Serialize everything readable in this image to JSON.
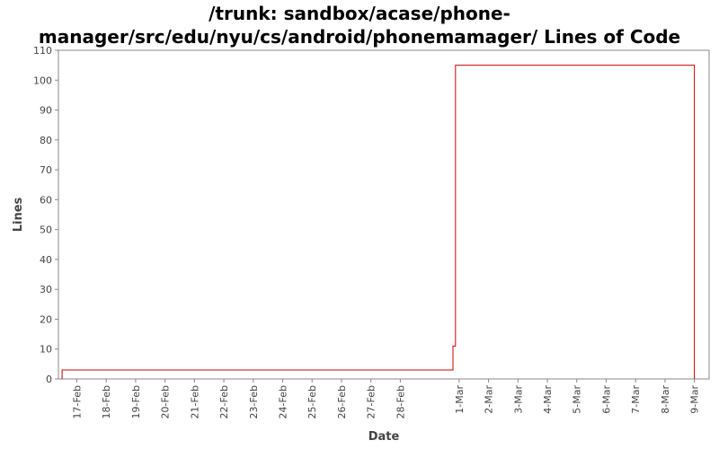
{
  "chart_data": {
    "type": "line",
    "title_lines": [
      "/trunk: sandbox/acase/phone-",
      "manager/src/edu/nyu/cs/android/phonemamager/ Lines of Code"
    ],
    "xlabel": "Date",
    "ylabel": "Lines",
    "ylim": [
      0,
      110
    ],
    "yticks": [
      0,
      10,
      20,
      30,
      40,
      50,
      60,
      70,
      80,
      90,
      100,
      110
    ],
    "x_start": "2008-02-16T09:00",
    "x_end": "2008-03-09T12:00",
    "xticks": [
      {
        "date": "2008-02-17",
        "label": "17-Feb"
      },
      {
        "date": "2008-02-18",
        "label": "18-Feb"
      },
      {
        "date": "2008-02-19",
        "label": "19-Feb"
      },
      {
        "date": "2008-02-20",
        "label": "20-Feb"
      },
      {
        "date": "2008-02-21",
        "label": "21-Feb"
      },
      {
        "date": "2008-02-22",
        "label": "22-Feb"
      },
      {
        "date": "2008-02-23",
        "label": "23-Feb"
      },
      {
        "date": "2008-02-24",
        "label": "24-Feb"
      },
      {
        "date": "2008-02-25",
        "label": "25-Feb"
      },
      {
        "date": "2008-02-26",
        "label": "26-Feb"
      },
      {
        "date": "2008-02-27",
        "label": "27-Feb"
      },
      {
        "date": "2008-02-28",
        "label": "28-Feb"
      },
      {
        "date": "2008-03-01",
        "label": "1-Mar"
      },
      {
        "date": "2008-03-02",
        "label": "2-Mar"
      },
      {
        "date": "2008-03-03",
        "label": "3-Mar"
      },
      {
        "date": "2008-03-04",
        "label": "4-Mar"
      },
      {
        "date": "2008-03-05",
        "label": "5-Mar"
      },
      {
        "date": "2008-03-06",
        "label": "6-Mar"
      },
      {
        "date": "2008-03-07",
        "label": "7-Mar"
      },
      {
        "date": "2008-03-08",
        "label": "8-Mar"
      },
      {
        "date": "2008-03-09",
        "label": "9-Mar"
      }
    ],
    "series": [
      {
        "color": "#cc0000",
        "step": true,
        "points": [
          {
            "x": "2008-02-16T12:00",
            "y": 0
          },
          {
            "x": "2008-02-16T12:00",
            "y": 3
          },
          {
            "x": "2008-02-29T19:00",
            "y": 3
          },
          {
            "x": "2008-02-29T19:00",
            "y": 11
          },
          {
            "x": "2008-02-29T21:00",
            "y": 11
          },
          {
            "x": "2008-02-29T21:00",
            "y": 105
          },
          {
            "x": "2008-03-09T00:00",
            "y": 105
          },
          {
            "x": "2008-03-09T00:00",
            "y": 0
          }
        ]
      }
    ],
    "grid": false,
    "plot_border_color": "#888888"
  }
}
